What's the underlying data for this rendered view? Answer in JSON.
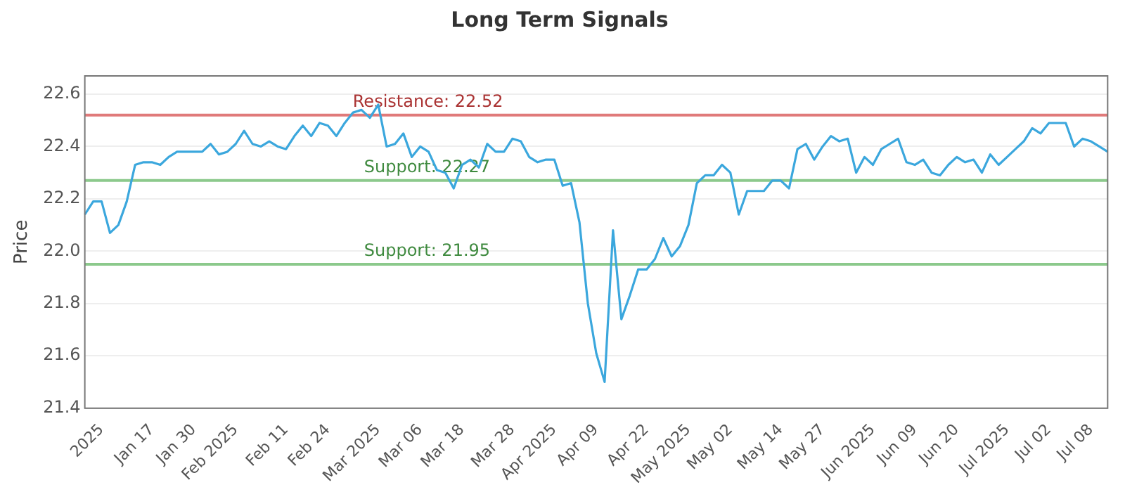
{
  "chart_data": {
    "type": "line",
    "title": "Long Term Signals",
    "ylabel": "Price",
    "categories": [
      null,
      null,
      "2025",
      null,
      null,
      null,
      null,
      null,
      "Jan 17",
      null,
      null,
      null,
      null,
      "Jan 30",
      null,
      null,
      null,
      null,
      "Feb 2025",
      null,
      null,
      null,
      null,
      null,
      "Feb 11",
      null,
      null,
      null,
      null,
      "Feb 24",
      null,
      null,
      null,
      null,
      null,
      "Mar 2025",
      null,
      null,
      null,
      null,
      "Mar 06",
      null,
      null,
      null,
      null,
      "Mar 18",
      null,
      null,
      null,
      null,
      null,
      "Mar 28",
      null,
      null,
      null,
      null,
      "Apr 2025",
      null,
      null,
      null,
      null,
      "Apr 09",
      null,
      null,
      null,
      null,
      null,
      "Apr 22",
      null,
      null,
      null,
      null,
      "May 2025",
      null,
      null,
      null,
      null,
      "May 02",
      null,
      null,
      null,
      null,
      null,
      "May 14",
      null,
      null,
      null,
      null,
      "May 27",
      null,
      null,
      null,
      null,
      null,
      "Jun 2025",
      null,
      null,
      null,
      null,
      "Jun 09",
      null,
      null,
      null,
      null,
      "Jun 20",
      null,
      null,
      null,
      null,
      null,
      "Jul 2025",
      null,
      null,
      null,
      null,
      "Jul 02",
      null,
      null,
      null,
      null,
      "Jul 08",
      null,
      null
    ],
    "series": [
      {
        "color": "#3ba7dd",
        "values": [
          22.14,
          22.19,
          22.19,
          22.07,
          22.1,
          22.19,
          22.33,
          22.34,
          22.34,
          22.33,
          22.36,
          22.38,
          22.38,
          22.38,
          22.38,
          22.41,
          22.37,
          22.38,
          22.41,
          22.46,
          22.41,
          22.4,
          22.42,
          22.4,
          22.39,
          22.44,
          22.48,
          22.44,
          22.49,
          22.48,
          22.44,
          22.49,
          22.53,
          22.54,
          22.51,
          22.56,
          22.4,
          22.41,
          22.45,
          22.36,
          22.4,
          22.38,
          22.31,
          22.3,
          22.24,
          22.33,
          22.35,
          22.32,
          22.41,
          22.38,
          22.38,
          22.43,
          22.42,
          22.36,
          22.34,
          22.35,
          22.35,
          22.25,
          22.26,
          22.11,
          21.8,
          21.61,
          21.5,
          22.08,
          21.74,
          21.83,
          21.93,
          21.93,
          21.97,
          22.05,
          21.98,
          22.02,
          22.1,
          22.26,
          22.29,
          22.29,
          22.33,
          22.3,
          22.14,
          22.23,
          22.23,
          22.23,
          22.27,
          22.27,
          22.24,
          22.39,
          22.41,
          22.35,
          22.4,
          22.44,
          22.42,
          22.43,
          22.3,
          22.36,
          22.33,
          22.39,
          22.41,
          22.43,
          22.34,
          22.33,
          22.35,
          22.3,
          22.29,
          22.33,
          22.36,
          22.34,
          22.35,
          22.3,
          22.37,
          22.33,
          22.36,
          22.39,
          22.42,
          22.47,
          22.45,
          22.49,
          22.49,
          22.49,
          22.4,
          22.43,
          22.42,
          22.4,
          22.38
        ]
      }
    ],
    "ylim": [
      21.4,
      22.67
    ],
    "yticks": [
      21.4,
      21.6,
      21.8,
      {
        "value": 22.0,
        "label": "22.0"
      },
      22.2,
      22.4,
      22.6
    ],
    "ref_lines": [
      {
        "axis": "y",
        "value": 22.52,
        "label": "Resistance: 22.52",
        "color": "#e07a7a"
      },
      {
        "axis": "y",
        "value": 22.27,
        "label": "Support: 22.27",
        "color": "#8cc98c"
      },
      {
        "axis": "y",
        "value": 21.95,
        "label": "Support: 21.95",
        "color": "#8cc98c"
      }
    ],
    "grid": "y",
    "marker": "none",
    "line_style": "solid"
  }
}
